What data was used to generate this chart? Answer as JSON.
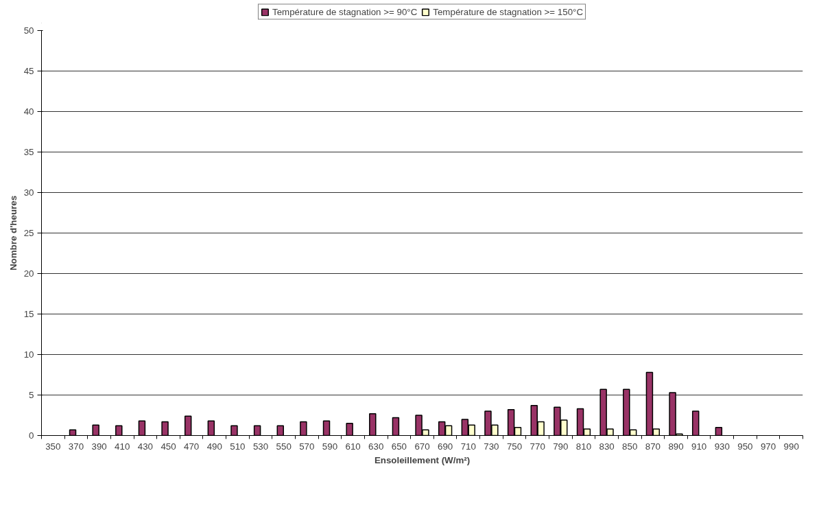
{
  "chart_data": {
    "type": "bar",
    "xlabel": "Ensoleillement (W/m²)",
    "ylabel": "Nombre d'heures",
    "categories": [
      "350",
      "370",
      "390",
      "410",
      "430",
      "450",
      "470",
      "490",
      "510",
      "530",
      "550",
      "570",
      "590",
      "610",
      "630",
      "650",
      "670",
      "690",
      "710",
      "730",
      "750",
      "770",
      "790",
      "810",
      "830",
      "850",
      "870",
      "890",
      "910",
      "930",
      "950",
      "970",
      "990"
    ],
    "series": [
      {
        "name": "Température de stagnation >= 90°C",
        "color": "#993366",
        "values": [
          null,
          0.7,
          1.3,
          1.2,
          1.8,
          1.7,
          2.4,
          1.8,
          1.2,
          1.2,
          1.2,
          1.7,
          1.8,
          1.5,
          2.7,
          2.2,
          2.5,
          1.7,
          2.0,
          3.0,
          3.2,
          3.7,
          3.5,
          3.3,
          5.7,
          5.7,
          7.8,
          5.3,
          3.0,
          1.0,
          null,
          null,
          null
        ]
      },
      {
        "name": "Température de stagnation >= 150°C",
        "color": "#ffffcc",
        "values": [
          null,
          null,
          null,
          null,
          null,
          null,
          null,
          null,
          null,
          null,
          null,
          null,
          null,
          null,
          null,
          null,
          0.7,
          1.2,
          1.3,
          1.3,
          1.0,
          1.7,
          1.9,
          0.8,
          0.8,
          0.7,
          0.8,
          0.2,
          null,
          null,
          null,
          null,
          null
        ]
      }
    ],
    "ylim": [
      0,
      50
    ],
    "yticks": [
      0,
      5,
      10,
      15,
      20,
      25,
      30,
      35,
      40,
      45,
      50
    ],
    "grid": "y",
    "legend": "top"
  }
}
